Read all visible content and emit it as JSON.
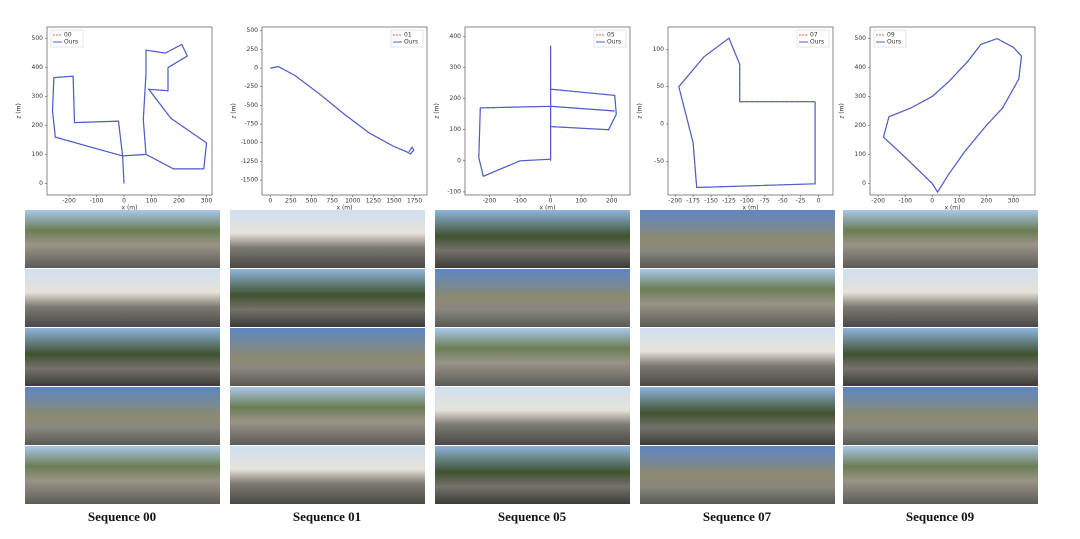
{
  "chart_data": [
    {
      "type": "line",
      "caption": "Sequence 00",
      "xlabel": "x (m)",
      "ylabel": "z (m)",
      "legend": "upper left",
      "xlim": [
        -280,
        320
      ],
      "ylim": [
        -40,
        540
      ],
      "xticks": [
        -200,
        -100,
        0,
        100,
        200,
        300
      ],
      "yticks": [
        0,
        100,
        200,
        300,
        400,
        500
      ],
      "series": [
        {
          "name": "00",
          "color": "#e8595a",
          "dashed": true,
          "x": [
            0,
            -5,
            -20,
            -180,
            -185,
            -255,
            -260,
            -250,
            -100,
            -5,
            80,
            70,
            80,
            80,
            150,
            210,
            230,
            160,
            160,
            90,
            170,
            300,
            290,
            180,
            80
          ],
          "values": [
            0,
            95,
            215,
            210,
            370,
            365,
            250,
            160,
            120,
            95,
            100,
            220,
            380,
            460,
            450,
            480,
            440,
            400,
            320,
            325,
            225,
            140,
            50,
            50,
            100
          ]
        },
        {
          "name": "Ours",
          "color": "#4a5fc8",
          "dashed": false,
          "x": [
            0,
            -5,
            -20,
            -180,
            -185,
            -255,
            -260,
            -250,
            -100,
            -5,
            80,
            70,
            80,
            80,
            150,
            210,
            230,
            160,
            160,
            90,
            170,
            300,
            290,
            180,
            80
          ],
          "values": [
            0,
            95,
            215,
            210,
            370,
            365,
            250,
            160,
            120,
            95,
            100,
            220,
            380,
            460,
            450,
            480,
            440,
            400,
            320,
            325,
            225,
            140,
            50,
            50,
            100
          ]
        }
      ]
    },
    {
      "type": "line",
      "caption": "Sequence 01",
      "xlabel": "x (m)",
      "ylabel": "z (m)",
      "legend": "upper right",
      "xlim": [
        -100,
        1900
      ],
      "ylim": [
        -1700,
        550
      ],
      "xticks": [
        0,
        250,
        500,
        750,
        1000,
        1250,
        1500,
        1750
      ],
      "yticks": [
        500,
        250,
        0,
        -250,
        -500,
        -750,
        -1000,
        -1250,
        -1500
      ],
      "series": [
        {
          "name": "01",
          "color": "#e8595a",
          "dashed": true,
          "x": [
            0,
            100,
            300,
            600,
            900,
            1200,
            1500,
            1650,
            1700,
            1740,
            1720,
            1680
          ],
          "values": [
            0,
            20,
            -100,
            -350,
            -620,
            -870,
            -1050,
            -1120,
            -1150,
            -1100,
            -1060,
            -1120
          ]
        },
        {
          "name": "Ours",
          "color": "#4a5fc8",
          "dashed": false,
          "x": [
            0,
            100,
            300,
            600,
            900,
            1200,
            1500,
            1650,
            1700,
            1740,
            1720,
            1680
          ],
          "values": [
            0,
            20,
            -100,
            -350,
            -620,
            -870,
            -1050,
            -1120,
            -1150,
            -1100,
            -1060,
            -1120
          ]
        }
      ]
    },
    {
      "type": "line",
      "caption": "Sequence 05",
      "xlabel": "x (m)",
      "ylabel": "z (m)",
      "legend": "upper right",
      "xlim": [
        -280,
        260
      ],
      "ylim": [
        -110,
        430
      ],
      "xticks": [
        -200,
        -100,
        0,
        100,
        200
      ],
      "yticks": [
        -100,
        0,
        100,
        200,
        300,
        400
      ],
      "series": [
        {
          "name": "05",
          "color": "#e8595a",
          "dashed": true,
          "x": [
            0,
            0,
            210,
            215,
            190,
            0,
            0,
            210,
            0,
            -230,
            -235,
            -220,
            -100,
            0,
            0
          ],
          "values": [
            0,
            230,
            210,
            150,
            100,
            110,
            175,
            160,
            175,
            170,
            10,
            -50,
            0,
            5,
            370
          ]
        },
        {
          "name": "Ours",
          "color": "#4a5fc8",
          "dashed": false,
          "x": [
            0,
            0,
            210,
            215,
            190,
            0,
            0,
            210,
            0,
            -230,
            -235,
            -220,
            -100,
            0,
            0
          ],
          "values": [
            0,
            230,
            210,
            150,
            100,
            110,
            175,
            160,
            175,
            170,
            10,
            -50,
            0,
            5,
            370
          ]
        }
      ]
    },
    {
      "type": "line",
      "caption": "Sequence 07",
      "xlabel": "x (m)",
      "ylabel": "z (m)",
      "legend": "upper right",
      "xlim": [
        -210,
        20
      ],
      "ylim": [
        -95,
        130
      ],
      "xticks": [
        -200,
        -175,
        -150,
        -125,
        -100,
        -75,
        -50,
        -25,
        0
      ],
      "yticks": [
        -50,
        0,
        50,
        100
      ],
      "series": [
        {
          "name": "07",
          "color": "#e8595a",
          "dashed": true,
          "x": [
            -5,
            -5,
            -170,
            -175,
            -195,
            -160,
            -125,
            -110,
            -110,
            -5
          ],
          "values": [
            30,
            -80,
            -85,
            -25,
            50,
            90,
            115,
            80,
            30,
            30
          ]
        },
        {
          "name": "Ours",
          "color": "#4a5fc8",
          "dashed": false,
          "x": [
            -5,
            -5,
            -170,
            -175,
            -195,
            -160,
            -125,
            -110,
            -110,
            -5
          ],
          "values": [
            30,
            -80,
            -85,
            -25,
            50,
            90,
            115,
            80,
            30,
            30
          ]
        }
      ]
    },
    {
      "type": "line",
      "caption": "Sequence 09",
      "xlabel": "x (m)",
      "ylabel": "z (m)",
      "legend": "upper left",
      "xlim": [
        -230,
        380
      ],
      "ylim": [
        -40,
        540
      ],
      "xticks": [
        -200,
        -100,
        0,
        100,
        200,
        300
      ],
      "yticks": [
        0,
        100,
        200,
        300,
        400,
        500
      ],
      "series": [
        {
          "name": "09",
          "color": "#e8595a",
          "dashed": true,
          "x": [
            0,
            -100,
            -180,
            -160,
            -80,
            0,
            60,
            130,
            180,
            240,
            300,
            330,
            320,
            260,
            200,
            120,
            60,
            20,
            0
          ],
          "values": [
            0,
            90,
            160,
            230,
            260,
            300,
            350,
            420,
            480,
            500,
            470,
            440,
            360,
            260,
            200,
            110,
            30,
            -30,
            0
          ]
        },
        {
          "name": "Ours",
          "color": "#4a5fc8",
          "dashed": false,
          "x": [
            0,
            -100,
            -180,
            -160,
            -80,
            0,
            60,
            130,
            180,
            240,
            300,
            330,
            320,
            260,
            200,
            120,
            60,
            20,
            0
          ],
          "values": [
            0,
            90,
            160,
            230,
            260,
            300,
            350,
            420,
            480,
            500,
            470,
            440,
            360,
            260,
            200,
            110,
            30,
            -30,
            0
          ]
        }
      ]
    }
  ]
}
